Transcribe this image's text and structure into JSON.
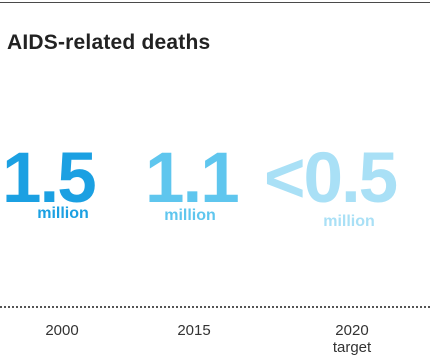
{
  "chart_data": {
    "type": "table",
    "title": "AIDS-related deaths",
    "unit": "million",
    "items": [
      {
        "label": "2000",
        "sublabel": "",
        "value_text": "1.5",
        "value": 1.5,
        "unit": "million",
        "color": "#1ba0e2"
      },
      {
        "label": "2015",
        "sublabel": "",
        "value_text": "1.1",
        "value": 1.1,
        "unit": "million",
        "color": "#5fc6ee"
      },
      {
        "label": "2020",
        "sublabel": "target",
        "value_text": "<0.5",
        "value": 0.5,
        "unit": "million",
        "color": "#a9e0f6"
      }
    ]
  }
}
